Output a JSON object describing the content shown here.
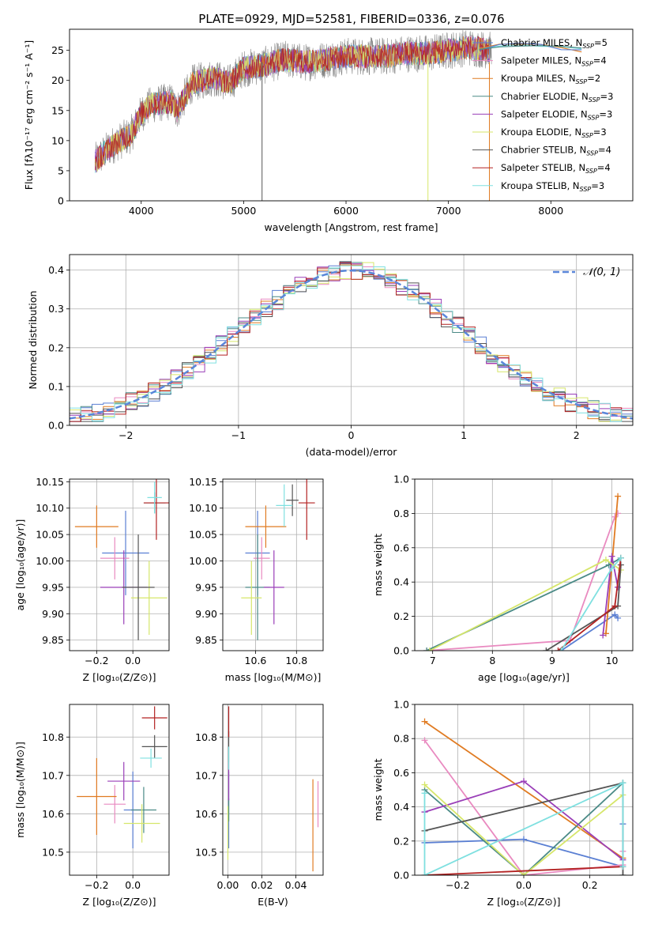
{
  "figure": {
    "title": "PLATE=0929, MJD=52581, FIBERID=0336, z=0.076"
  },
  "chart_data": [
    {
      "id": "spectrum",
      "type": "line",
      "xlabel": "wavelength [Angstrom, rest frame]",
      "ylabel": "Flux [fλ10⁻¹⁷ erg cm⁻² s⁻¹ A⁻¹]",
      "xlim": [
        3300,
        8800
      ],
      "ylim": [
        0,
        28.5
      ],
      "xticks": [
        4000,
        5000,
        6000,
        7000,
        8000
      ],
      "yticks": [
        0,
        5,
        10,
        15,
        20,
        25
      ],
      "legend_position": "right",
      "legend": [
        {
          "label": "Chabrier MILES, N_SSP=5",
          "color": "#5a7fd3"
        },
        {
          "label": "Salpeter MILES, N_SSP=4",
          "color": "#e98ac0"
        },
        {
          "label": "Kroupa MILES, N_SSP=2",
          "color": "#e07b22"
        },
        {
          "label": "Chabrier ELODIE, N_SSP=3",
          "color": "#4a8a86"
        },
        {
          "label": "Salpeter ELODIE, N_SSP=3",
          "color": "#9a3fb8"
        },
        {
          "label": "Kroupa ELODIE, N_SSP=3",
          "color": "#d6e66a"
        },
        {
          "label": "Chabrier STELIB, N_SSP=4",
          "color": "#555555"
        },
        {
          "label": "Salpeter STELIB, N_SSP=4",
          "color": "#b32222"
        },
        {
          "label": "Kroupa STELIB, N_SSP=3",
          "color": "#7fe0e0"
        }
      ],
      "data_wavelength": [
        3550,
        3700,
        3900,
        4000,
        4100,
        4300,
        4350,
        4500,
        4700,
        4860,
        5000,
        5200,
        5400,
        5600,
        5800,
        6000,
        6200,
        6400,
        6563,
        6800,
        7000,
        7200,
        7400
      ],
      "data_flux": [
        6.5,
        9.0,
        11.0,
        14.5,
        16.0,
        16.5,
        15.0,
        19.5,
        20.5,
        19.5,
        22.0,
        22.5,
        23.5,
        23.0,
        23.5,
        24.0,
        24.0,
        24.0,
        24.5,
        24.5,
        25.0,
        25.5,
        25.0
      ],
      "model_wavelength": [
        7300,
        7500,
        7700,
        7900,
        8100,
        8300
      ],
      "model_flux": [
        25.2,
        25.8,
        26.0,
        25.6,
        25.4,
        25.0
      ]
    },
    {
      "id": "residuals",
      "type": "line",
      "xlabel": "(data-model)/error",
      "ylabel": "Normed distribution",
      "xlim": [
        -2.5,
        2.5
      ],
      "ylim": [
        0,
        0.44
      ],
      "xticks": [
        -2,
        -1,
        0,
        1,
        2
      ],
      "yticks": [
        0.0,
        0.1,
        0.2,
        0.3,
        0.4
      ],
      "grid": true,
      "legend_position": "top-right",
      "legend": [
        {
          "label": "𝒩(0, 1)",
          "color": "#5a86d9"
        }
      ],
      "series": [
        {
          "mean": 0,
          "sigma": 1
        }
      ]
    },
    {
      "id": "age-vs-Z",
      "type": "scatter",
      "xlabel": "Z [log₁₀(Z/Z⊙)]",
      "ylabel": "age  [log₁₀(age/yr)]",
      "xlim": [
        -0.35,
        0.2
      ],
      "ylim": [
        9.83,
        10.155
      ],
      "xticks": [
        -0.2,
        0.0
      ],
      "yticks": [
        9.85,
        9.9,
        9.95,
        10.0,
        10.05,
        10.1,
        10.15
      ],
      "grid": true,
      "points": [
        {
          "x": -0.04,
          "y": 10.015,
          "xerr": 0.13,
          "yerr": 0.08,
          "color": "#5a7fd3"
        },
        {
          "x": -0.1,
          "y": 10.005,
          "xerr": 0.08,
          "yerr": 0.04,
          "color": "#e98ac0"
        },
        {
          "x": -0.2,
          "y": 10.065,
          "xerr": 0.12,
          "yerr": 0.04,
          "color": "#e07b22"
        },
        {
          "x": 0.12,
          "y": 10.11,
          "xerr": 0.06,
          "yerr": 0.02,
          "color": "#4a8a86"
        },
        {
          "x": -0.05,
          "y": 9.95,
          "xerr": 0.13,
          "yerr": 0.07,
          "color": "#9a3fb8"
        },
        {
          "x": 0.09,
          "y": 9.93,
          "xerr": 0.1,
          "yerr": 0.07,
          "color": "#d6e66a"
        },
        {
          "x": 0.03,
          "y": 9.95,
          "xerr": 0.09,
          "yerr": 0.1,
          "color": "#555555"
        },
        {
          "x": 0.13,
          "y": 10.11,
          "xerr": 0.07,
          "yerr": 0.07,
          "color": "#b32222"
        },
        {
          "x": 0.12,
          "y": 10.12,
          "xerr": 0.04,
          "yerr": 0.03,
          "color": "#7fe0e0"
        }
      ]
    },
    {
      "id": "age-vs-mass",
      "type": "scatter",
      "xlabel": "mass [log₁₀(M/M⊙)]",
      "ylabel": "",
      "xlim": [
        10.44,
        10.93
      ],
      "ylim": [
        9.83,
        10.155
      ],
      "xticks": [
        10.6,
        10.8
      ],
      "yticks": [
        9.85,
        9.9,
        9.95,
        10.0,
        10.05,
        10.1,
        10.15
      ],
      "grid": true,
      "points": [
        {
          "x": 10.61,
          "y": 10.015,
          "xerr": 0.06,
          "yerr": 0.08,
          "color": "#5a7fd3"
        },
        {
          "x": 10.63,
          "y": 10.005,
          "xerr": 0.04,
          "yerr": 0.04,
          "color": "#e98ac0"
        },
        {
          "x": 10.65,
          "y": 10.065,
          "xerr": 0.1,
          "yerr": 0.04,
          "color": "#e07b22"
        },
        {
          "x": 10.61,
          "y": 9.95,
          "xerr": 0.06,
          "yerr": 0.1,
          "color": "#4a8a86"
        },
        {
          "x": 10.69,
          "y": 9.95,
          "xerr": 0.05,
          "yerr": 0.07,
          "color": "#9a3fb8"
        },
        {
          "x": 10.58,
          "y": 9.93,
          "xerr": 0.05,
          "yerr": 0.07,
          "color": "#d6e66a"
        },
        {
          "x": 10.78,
          "y": 10.115,
          "xerr": 0.03,
          "yerr": 0.03,
          "color": "#555555"
        },
        {
          "x": 10.85,
          "y": 10.11,
          "xerr": 0.04,
          "yerr": 0.07,
          "color": "#b32222"
        },
        {
          "x": 10.74,
          "y": 10.105,
          "xerr": 0.04,
          "yerr": 0.04,
          "color": "#7fe0e0"
        }
      ]
    },
    {
      "id": "weight-vs-age",
      "type": "line",
      "xlabel": "age  [log₁₀(age/yr)]",
      "ylabel": "mass weight",
      "xlim": [
        6.7,
        10.35
      ],
      "ylim": [
        0,
        1.0
      ],
      "xticks": [
        7,
        8,
        9,
        10
      ],
      "yticks": [
        0.0,
        0.2,
        0.4,
        0.6,
        0.8,
        1.0
      ],
      "grid": true,
      "series": [
        {
          "name": "Chabrier MILES",
          "color": "#5a7fd3",
          "x": [
            9.15,
            10.05,
            10.1
          ],
          "y": [
            0.0,
            0.21,
            0.19
          ]
        },
        {
          "name": "Salpeter MILES",
          "color": "#e98ac0",
          "x": [
            6.9,
            9.3,
            10.05,
            10.1
          ],
          "y": [
            0.0,
            0.06,
            0.78,
            0.8
          ]
        },
        {
          "name": "Kroupa MILES",
          "color": "#e07b22",
          "x": [
            9.9,
            10.1
          ],
          "y": [
            0.1,
            0.9
          ]
        },
        {
          "name": "Chabrier ELODIE",
          "color": "#4a8a86",
          "x": [
            6.9,
            9.95,
            10.15
          ],
          "y": [
            0.0,
            0.5,
            0.54
          ]
        },
        {
          "name": "Salpeter ELODIE",
          "color": "#9a3fb8",
          "x": [
            9.85,
            10.0,
            10.1
          ],
          "y": [
            0.09,
            0.55,
            0.37
          ]
        },
        {
          "name": "Kroupa ELODIE",
          "color": "#d6e66a",
          "x": [
            6.95,
            9.9,
            10.15
          ],
          "y": [
            0.0,
            0.53,
            0.47
          ]
        },
        {
          "name": "Chabrier STELIB",
          "color": "#555555",
          "x": [
            8.9,
            10.1,
            10.15
          ],
          "y": [
            0.0,
            0.26,
            0.5
          ]
        },
        {
          "name": "Salpeter STELIB",
          "color": "#b32222",
          "x": [
            9.1,
            10.05,
            10.15
          ],
          "y": [
            0.0,
            0.26,
            0.54
          ]
        },
        {
          "name": "Kroupa STELIB",
          "color": "#7fe0e0",
          "x": [
            9.15,
            10.0,
            10.15
          ],
          "y": [
            0.0,
            0.48,
            0.54
          ]
        }
      ]
    },
    {
      "id": "mass-vs-Z",
      "type": "scatter",
      "xlabel": "Z [log₁₀(Z/Z⊙)]",
      "ylabel": "mass [log₁₀(M/M⊙)]",
      "xlim": [
        -0.35,
        0.2
      ],
      "ylim": [
        10.44,
        10.885
      ],
      "xticks": [
        -0.2,
        0.0
      ],
      "yticks": [
        10.5,
        10.6,
        10.7,
        10.8
      ],
      "grid": true,
      "points": [
        {
          "x": 0.0,
          "y": 10.61,
          "xerr": 0.05,
          "yerr": 0.1,
          "color": "#5a7fd3"
        },
        {
          "x": -0.1,
          "y": 10.625,
          "xerr": 0.06,
          "yerr": 0.05,
          "color": "#e98ac0"
        },
        {
          "x": -0.2,
          "y": 10.645,
          "xerr": 0.11,
          "yerr": 0.1,
          "color": "#e07b22"
        },
        {
          "x": 0.06,
          "y": 10.61,
          "xerr": 0.07,
          "yerr": 0.06,
          "color": "#4a8a86"
        },
        {
          "x": -0.05,
          "y": 10.685,
          "xerr": 0.09,
          "yerr": 0.05,
          "color": "#9a3fb8"
        },
        {
          "x": 0.05,
          "y": 10.575,
          "xerr": 0.1,
          "yerr": 0.05,
          "color": "#d6e66a"
        },
        {
          "x": 0.12,
          "y": 10.775,
          "xerr": 0.07,
          "yerr": 0.03,
          "color": "#555555"
        },
        {
          "x": 0.12,
          "y": 10.85,
          "xerr": 0.07,
          "yerr": 0.03,
          "color": "#b32222"
        },
        {
          "x": 0.1,
          "y": 10.745,
          "xerr": 0.06,
          "yerr": 0.025,
          "color": "#7fe0e0"
        }
      ]
    },
    {
      "id": "mass-vs-EBV",
      "type": "scatter",
      "xlabel": "E(B-V)",
      "ylabel": "",
      "xlim": [
        -0.003,
        0.056
      ],
      "ylim": [
        10.44,
        10.885
      ],
      "xticks": [
        0.0,
        0.02,
        0.04
      ],
      "yticks": [
        10.5,
        10.6,
        10.7,
        10.8
      ],
      "grid": true,
      "points": [
        {
          "x": 0.0005,
          "y": 10.61,
          "yerr": 0.1,
          "color": "#5a7fd3"
        },
        {
          "x": 0.053,
          "y": 10.625,
          "yerr": 0.06,
          "color": "#e98ac0"
        },
        {
          "x": 0.05,
          "y": 10.57,
          "yerr": 0.12,
          "color": "#e07b22"
        },
        {
          "x": 0.0005,
          "y": 10.61,
          "yerr": 0.03,
          "color": "#4a8a86"
        },
        {
          "x": 0.0005,
          "y": 10.685,
          "yerr": 0.05,
          "color": "#9a3fb8"
        },
        {
          "x": 0.0,
          "y": 10.55,
          "yerr": 0.07,
          "color": "#d6e66a"
        },
        {
          "x": 0.0005,
          "y": 10.775,
          "yerr": 0.04,
          "color": "#555555"
        },
        {
          "x": 0.0005,
          "y": 10.84,
          "yerr": 0.04,
          "color": "#b32222"
        },
        {
          "x": 0.0005,
          "y": 10.745,
          "yerr": 0.03,
          "color": "#7fe0e0"
        }
      ]
    },
    {
      "id": "weight-vs-Z",
      "type": "line",
      "xlabel": "Z [log₁₀(Z/Z⊙)]",
      "ylabel": "mass weight",
      "xlim": [
        -0.33,
        0.33
      ],
      "ylim": [
        0,
        1.0
      ],
      "xticks": [
        -0.2,
        0.0,
        0.2
      ],
      "yticks": [
        0.0,
        0.2,
        0.4,
        0.6,
        0.8,
        1.0
      ],
      "grid": true,
      "series": [
        {
          "name": "Chabrier MILES",
          "color": "#5a7fd3",
          "x": [
            -0.3,
            0.0,
            0.3,
            0.3
          ],
          "y": [
            0.19,
            0.21,
            0.05,
            0.3
          ]
        },
        {
          "name": "Salpeter MILES",
          "color": "#e98ac0",
          "x": [
            -0.3,
            0.0,
            0.3,
            0.3
          ],
          "y": [
            0.79,
            0.0,
            0.06,
            0.14
          ]
        },
        {
          "name": "Kroupa MILES",
          "color": "#e07b22",
          "x": [
            -0.3,
            0.3
          ],
          "y": [
            0.9,
            0.1
          ]
        },
        {
          "name": "Chabrier ELODIE",
          "color": "#4a8a86",
          "x": [
            -0.3,
            0.0,
            0.3
          ],
          "y": [
            0.5,
            0.0,
            0.54
          ]
        },
        {
          "name": "Salpeter ELODIE",
          "color": "#9a3fb8",
          "x": [
            -0.3,
            0.0,
            0.3
          ],
          "y": [
            0.37,
            0.55,
            0.09
          ]
        },
        {
          "name": "Kroupa ELODIE",
          "color": "#d6e66a",
          "x": [
            -0.3,
            0.0,
            0.3
          ],
          "y": [
            0.53,
            0.0,
            0.47
          ]
        },
        {
          "name": "Chabrier STELIB",
          "color": "#555555",
          "x": [
            -0.3,
            0.3,
            0.3
          ],
          "y": [
            0.26,
            0.54,
            0.0
          ]
        },
        {
          "name": "Salpeter STELIB",
          "color": "#b32222",
          "x": [
            -0.3,
            0.3
          ],
          "y": [
            0.0,
            0.05
          ]
        },
        {
          "name": "Kroupa STELIB",
          "color": "#7fe0e0",
          "x": [
            -0.3,
            -0.3,
            0.3,
            0.3
          ],
          "y": [
            0.48,
            0.0,
            0.54,
            0.05
          ]
        }
      ]
    }
  ]
}
